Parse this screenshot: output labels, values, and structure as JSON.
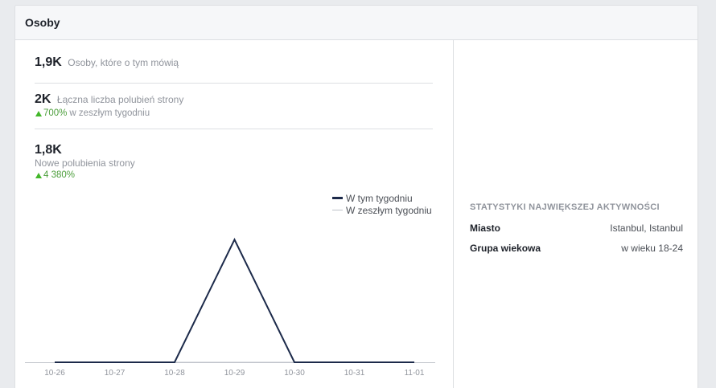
{
  "card": {
    "title": "Osoby"
  },
  "stats": {
    "talking": {
      "value": "1,9K",
      "label": "Osoby, które o tym mówią"
    },
    "total_likes": {
      "value": "2K",
      "label": "Łączna liczba polubień strony",
      "change": "700%",
      "change_suffix": "w zeszłym tygodniu"
    },
    "new_likes": {
      "value": "1,8K",
      "label": "Nowe polubienia strony",
      "change": "4 380%"
    }
  },
  "legend": {
    "this_week": "W tym tygodniu",
    "last_week": "W zeszłym tygodniu"
  },
  "chart_data": {
    "type": "line",
    "categories": [
      "10-26",
      "10-27",
      "10-28",
      "10-29",
      "10-30",
      "10-31",
      "11-01"
    ],
    "series": [
      {
        "name": "W tym tygodniu",
        "color": "#1c2a4a",
        "values": [
          0,
          0,
          0,
          1,
          0,
          0,
          0
        ]
      },
      {
        "name": "W zeszłym tygodniu",
        "color": "#bec2c9",
        "values": [
          0,
          0,
          0,
          0,
          0,
          0,
          0
        ]
      }
    ],
    "ylim": [
      0,
      1.1
    ]
  },
  "insights": {
    "title": "Statystyki największej aktywności",
    "rows": [
      {
        "label": "Miasto",
        "value": "Istanbul, Istanbul"
      },
      {
        "label": "Grupa wiekowa",
        "value": "w wieku 18-24"
      }
    ]
  }
}
